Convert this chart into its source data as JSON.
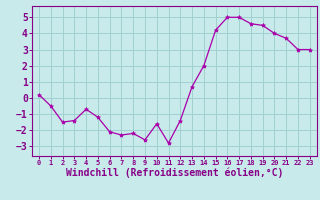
{
  "x": [
    0,
    1,
    2,
    3,
    4,
    5,
    6,
    7,
    8,
    9,
    10,
    11,
    12,
    13,
    14,
    15,
    16,
    17,
    18,
    19,
    20,
    21,
    22,
    23
  ],
  "y": [
    0.2,
    -0.5,
    -1.5,
    -1.4,
    -0.7,
    -1.2,
    -2.1,
    -2.3,
    -2.2,
    -2.6,
    -1.6,
    -2.8,
    -1.4,
    0.7,
    2.0,
    4.2,
    5.0,
    5.0,
    4.6,
    4.5,
    4.0,
    3.7,
    3.0,
    3.0
  ],
  "line_color": "#aa00aa",
  "marker": "*",
  "marker_size": 3,
  "bg_color": "#c8eaea",
  "grid_color": "#a0d0d0",
  "xlabel": "Windchill (Refroidissement éolien,°C)",
  "xlabel_color": "#880088",
  "tick_color": "#880088",
  "axis_color": "#880088",
  "ylim": [
    -3.6,
    5.7
  ],
  "xlim": [
    -0.6,
    23.6
  ],
  "yticks": [
    -3,
    -2,
    -1,
    0,
    1,
    2,
    3,
    4,
    5
  ],
  "xticks": [
    0,
    1,
    2,
    3,
    4,
    5,
    6,
    7,
    8,
    9,
    10,
    11,
    12,
    13,
    14,
    15,
    16,
    17,
    18,
    19,
    20,
    21,
    22,
    23
  ],
  "xlabel_fontsize": 7,
  "ytick_fontsize": 7,
  "xtick_fontsize": 5
}
